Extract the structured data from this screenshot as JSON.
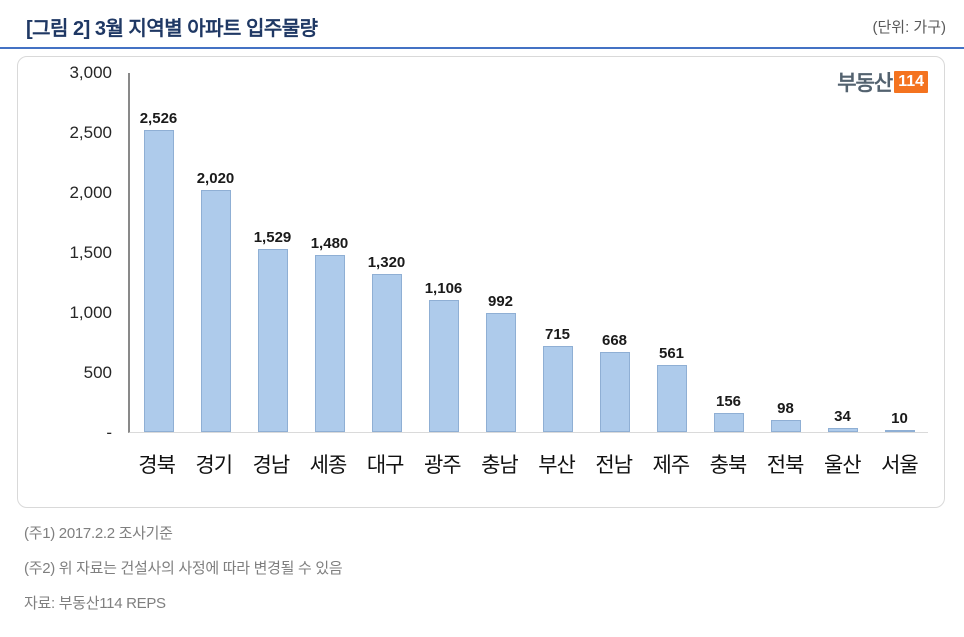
{
  "header": {
    "title": "[그림 2] 3월 지역별 아파트 입주물량",
    "unit": "(단위: 가구)"
  },
  "logo": {
    "text": "부동산",
    "badge": "114"
  },
  "chart_data": {
    "type": "bar",
    "title": "3월 지역별 아파트 입주물량",
    "categories": [
      "경북",
      "경기",
      "경남",
      "세종",
      "대구",
      "광주",
      "충남",
      "부산",
      "전남",
      "제주",
      "충북",
      "전북",
      "울산",
      "서울"
    ],
    "values": [
      2526,
      2020,
      1529,
      1480,
      1320,
      1106,
      992,
      715,
      668,
      561,
      156,
      98,
      34,
      10
    ],
    "value_labels": [
      "2,526",
      "2,020",
      "1,529",
      "1,480",
      "1,320",
      "1,106",
      "992",
      "715",
      "668",
      "561",
      "156",
      "98",
      "34",
      "10"
    ],
    "xlabel": "",
    "ylabel": "",
    "ylim": [
      0,
      3000
    ],
    "yticks": [
      3000,
      2500,
      2000,
      1500,
      1000,
      500,
      0
    ],
    "ytick_labels": [
      "3,000",
      "2,500",
      "2,000",
      "1,500",
      "1,000",
      "500",
      "-"
    ],
    "grid": false,
    "legend": false,
    "bar_color": "#AECBEB",
    "bar_border_color": "#8FAFD4"
  },
  "footer": {
    "note1": "(주1) 2017.2.2 조사기준",
    "note2": "(주2) 위 자료는 건설사의 사정에 따라 변경될 수 있음",
    "source": "자료: 부동산114  REPS"
  },
  "colors": {
    "title_color": "#1F3864",
    "accent_line": "#4472C4",
    "badge_bg": "#F4731F",
    "note_color": "#7F7F7F"
  }
}
